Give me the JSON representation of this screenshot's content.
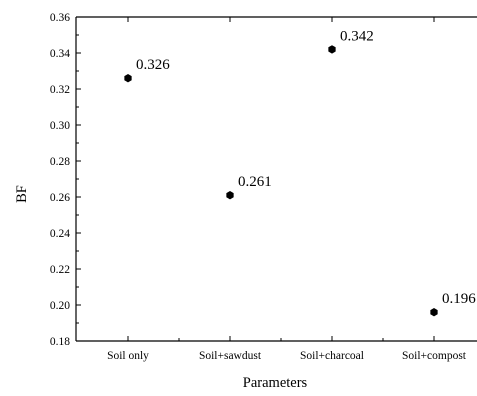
{
  "chart_data": {
    "type": "scatter",
    "title": "",
    "xlabel": "Parameters",
    "ylabel": "BF",
    "categories": [
      "Soil only",
      "Soil+sawdust",
      "Soil+charcoal",
      "Soil+compost"
    ],
    "values": [
      0.326,
      0.261,
      0.342,
      0.196
    ],
    "data_labels": [
      "0.326",
      "0.261",
      "0.342",
      "0.196"
    ],
    "ylim": [
      0.18,
      0.36
    ],
    "yticks": [
      "0.18",
      "0.20",
      "0.22",
      "0.24",
      "0.26",
      "0.28",
      "0.30",
      "0.32",
      "0.34",
      "0.36"
    ],
    "grid": false,
    "legend": "none",
    "marker": "hexagon",
    "marker_color": "#000000"
  }
}
